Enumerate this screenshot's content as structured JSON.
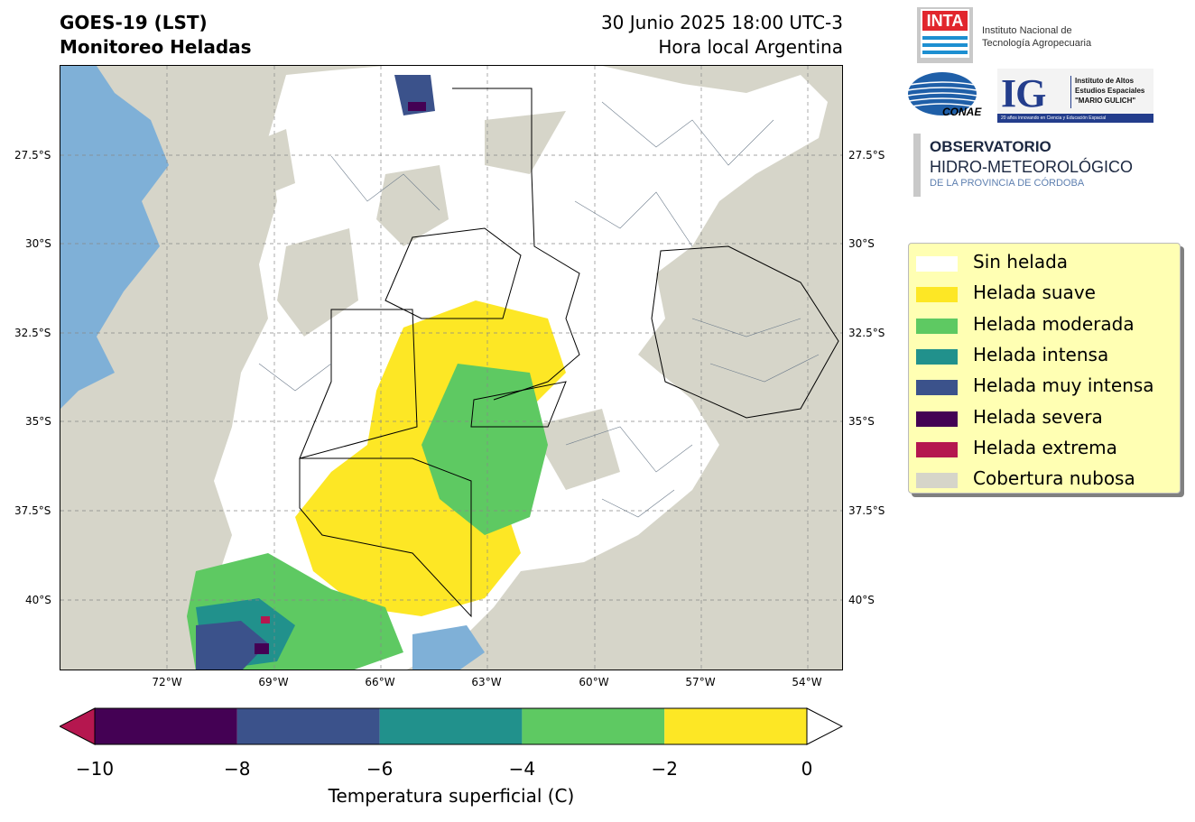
{
  "header": {
    "title_line1": "GOES-19 (LST)",
    "title_line2": "Monitoreo Heladas",
    "date_line1": "30 Junio 2025 18:00 UTC-3",
    "date_line2": "Hora local Argentina"
  },
  "map": {
    "lat_labels": [
      "27.5°S",
      "30°S",
      "32.5°S",
      "35°S",
      "37.5°S",
      "40°S"
    ],
    "lon_labels": [
      "72°W",
      "69°W",
      "66°W",
      "63°W",
      "60°W",
      "57°W",
      "54°W"
    ]
  },
  "logos": {
    "inta_mark": "INTA",
    "inta_name_line1": "Instituto Nacional de",
    "inta_name_line2": "Tecnología Agropecuaria",
    "conae": "CONAE",
    "ig_mark": "IG",
    "ig_line1": "Instituto de Altos",
    "ig_line2": "Estudios Espaciales",
    "ig_line3": "\"MARIO GULICH\"",
    "ig_tagline": "20 años innovando en Ciencia y Educación Espacial",
    "obs_line1": "OBSERVATORIO",
    "obs_line2": "HIDRO-METEOROLÓGICO",
    "obs_line3": "DE LA PROVINCIA DE CÓRDOBA"
  },
  "legend": {
    "items": [
      {
        "label": "Sin helada",
        "color": "#ffffff"
      },
      {
        "label": "Helada suave",
        "color": "#fde725"
      },
      {
        "label": "Helada moderada",
        "color": "#5ec962"
      },
      {
        "label": "Helada intensa",
        "color": "#21918c"
      },
      {
        "label": "Helada muy intensa",
        "color": "#3b528b"
      },
      {
        "label": "Helada severa",
        "color": "#440154"
      },
      {
        "label": "Helada extrema",
        "color": "#b5174f"
      },
      {
        "label": "Cobertura nubosa",
        "color": "#d6d5c9"
      }
    ]
  },
  "colorbar": {
    "ticks": [
      "−10",
      "−8",
      "−6",
      "−4",
      "−2",
      "0"
    ],
    "label": "Temperatura superficial (C)",
    "colors": [
      "#440154",
      "#3b528b",
      "#21918c",
      "#5ec962",
      "#fde725"
    ],
    "under_color": "#b5174f",
    "over_color": "#ffffff"
  }
}
